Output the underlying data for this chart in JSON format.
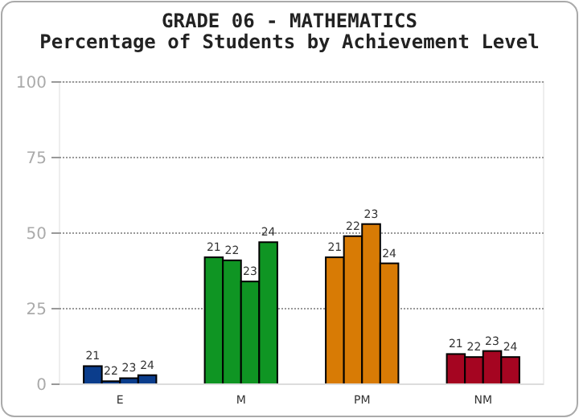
{
  "chart_data": {
    "type": "bar",
    "title": "GRADE 06 - MATHEMATICS",
    "subtitle": "Percentage of Students by Achievement Level",
    "categories": [
      "E",
      "M",
      "PM",
      "NM"
    ],
    "series": [
      {
        "name": "21",
        "colors": [
          "#0b3d8c",
          "#0f9523",
          "#d87b05",
          "#a50521"
        ],
        "values": [
          6,
          42,
          42,
          10
        ]
      },
      {
        "name": "22",
        "colors": [
          "#0b3d8c",
          "#0f9523",
          "#d87b05",
          "#a50521"
        ],
        "values": [
          1,
          41,
          49,
          9
        ]
      },
      {
        "name": "23",
        "colors": [
          "#0b3d8c",
          "#0f9523",
          "#d87b05",
          "#a50521"
        ],
        "values": [
          2,
          34,
          53,
          11
        ]
      },
      {
        "name": "24",
        "colors": [
          "#0b3d8c",
          "#0f9523",
          "#d87b05",
          "#a50521"
        ],
        "values": [
          3,
          47,
          40,
          9
        ]
      }
    ],
    "ylim": [
      0,
      100
    ],
    "yticks": [
      0,
      25,
      50,
      75,
      100
    ],
    "grid": "y"
  }
}
